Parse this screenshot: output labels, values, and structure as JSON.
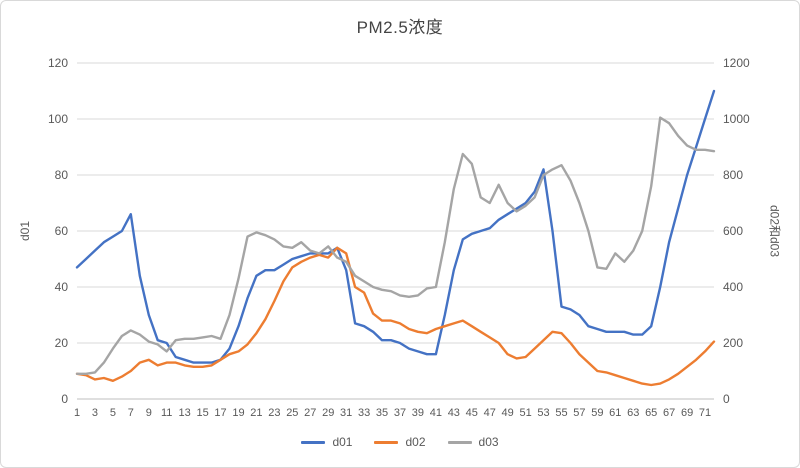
{
  "chart": {
    "title": "PM2.5浓度",
    "left_axis_label": "d01",
    "right_axis_label": "d02和d03"
  },
  "chart_data": {
    "type": "line",
    "title": "PM2.5浓度",
    "grid": true,
    "legend_position": "bottom",
    "x_tick_labels": [
      "1",
      "3",
      "5",
      "7",
      "9",
      "11",
      "13",
      "15",
      "17",
      "19",
      "21",
      "23",
      "25",
      "27",
      "29",
      "31",
      "33",
      "35",
      "37",
      "39",
      "41",
      "43",
      "45",
      "47",
      "49",
      "51",
      "53",
      "55",
      "57",
      "59",
      "61",
      "63",
      "65",
      "67",
      "69",
      "71"
    ],
    "left_axis": {
      "label": "d01",
      "range": [
        0,
        120
      ],
      "ticks": [
        0,
        20,
        40,
        60,
        80,
        100,
        120
      ]
    },
    "right_axis": {
      "label": "d02和d03",
      "range": [
        0,
        1200
      ],
      "ticks": [
        0,
        200,
        400,
        600,
        800,
        1000,
        1200
      ]
    },
    "series": [
      {
        "name": "d01",
        "axis": "left",
        "color": "#4472c4",
        "values": [
          47,
          50,
          53,
          56,
          58,
          60,
          66,
          44,
          30,
          21,
          20,
          15,
          14,
          13,
          13,
          13,
          14,
          18,
          26,
          36,
          44,
          46,
          46,
          48,
          50,
          51,
          52,
          52,
          52,
          54,
          46,
          27,
          26,
          24,
          21,
          21,
          20,
          18,
          17,
          16,
          16,
          30,
          46,
          57,
          59,
          60,
          61,
          64,
          66,
          68,
          70,
          74,
          82,
          60,
          33,
          32,
          30,
          26,
          25,
          24,
          24,
          24,
          23,
          23,
          26,
          40,
          56,
          68,
          80,
          90,
          100,
          110
        ]
      },
      {
        "name": "d02",
        "axis": "right",
        "color": "#ed7d31",
        "values": [
          90,
          85,
          70,
          75,
          65,
          80,
          100,
          130,
          140,
          120,
          130,
          130,
          120,
          115,
          115,
          120,
          140,
          160,
          170,
          195,
          235,
          285,
          350,
          420,
          470,
          490,
          505,
          515,
          505,
          540,
          520,
          400,
          380,
          305,
          280,
          280,
          270,
          250,
          240,
          235,
          250,
          260,
          270,
          280,
          260,
          240,
          220,
          200,
          160,
          145,
          150,
          180,
          210,
          240,
          235,
          200,
          160,
          130,
          100,
          95,
          85,
          75,
          65,
          55,
          50,
          55,
          70,
          90,
          115,
          140,
          170,
          205
        ]
      },
      {
        "name": "d03",
        "axis": "right",
        "color": "#a5a5a5",
        "values": [
          90,
          90,
          95,
          130,
          180,
          225,
          245,
          230,
          205,
          195,
          170,
          210,
          215,
          215,
          220,
          225,
          215,
          300,
          430,
          580,
          595,
          585,
          570,
          545,
          540,
          560,
          530,
          520,
          545,
          505,
          490,
          440,
          420,
          400,
          390,
          385,
          370,
          365,
          370,
          395,
          400,
          560,
          750,
          875,
          840,
          720,
          700,
          765,
          700,
          670,
          690,
          720,
          800,
          820,
          835,
          780,
          700,
          600,
          470,
          465,
          520,
          490,
          530,
          600,
          760,
          1005,
          985,
          940,
          905,
          890,
          890,
          885
        ]
      }
    ]
  }
}
